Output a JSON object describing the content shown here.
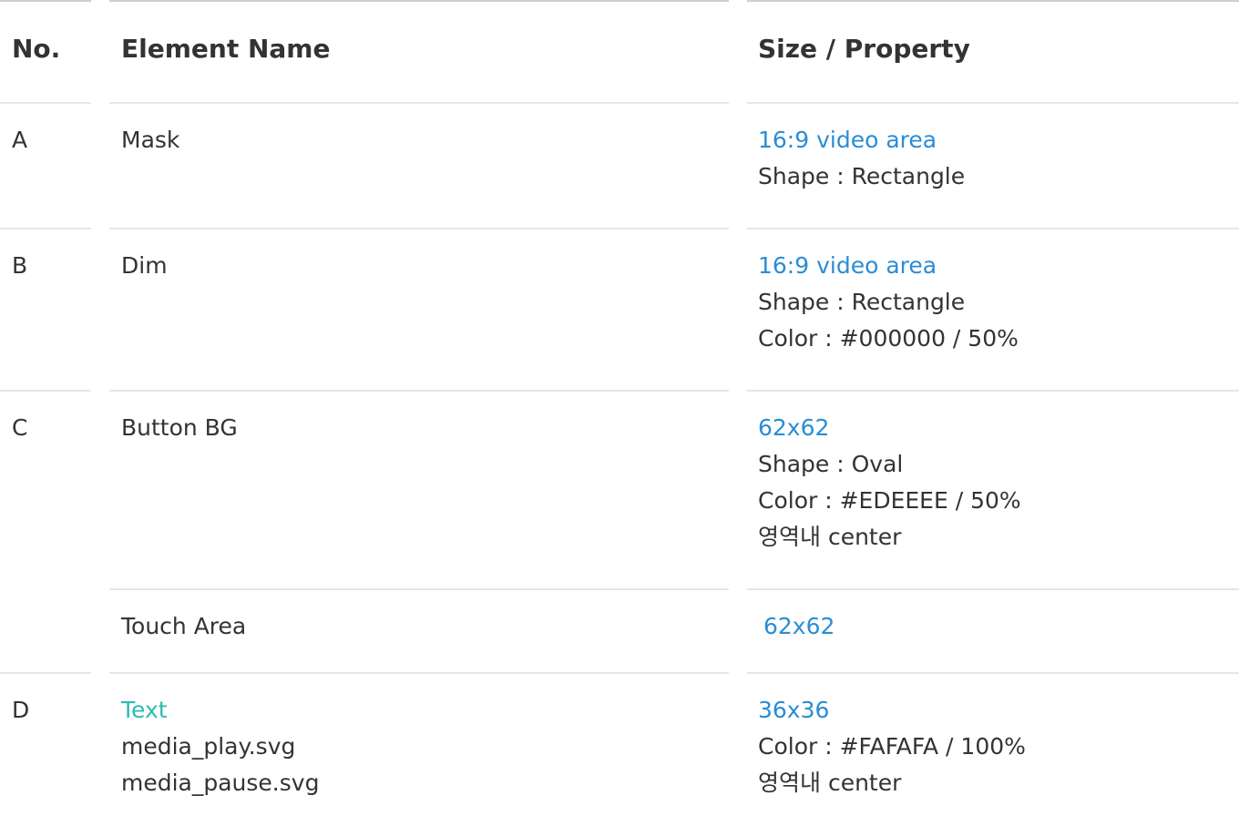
{
  "table": {
    "headers": {
      "no": "No.",
      "element": "Element Name",
      "property": "Size / Property"
    },
    "rows": [
      {
        "no": "A",
        "element": [
          "Mask"
        ],
        "size": "16:9 video area",
        "props": [
          "Shape : Rectangle"
        ]
      },
      {
        "no": "B",
        "element": [
          "Dim"
        ],
        "size": "16:9 video area",
        "props": [
          "Shape : Rectangle",
          "Color : #000000 / 50%"
        ]
      },
      {
        "no": "C",
        "element": [
          "Button BG"
        ],
        "size": "62x62",
        "props": [
          "Shape : Oval",
          "Color : #EDEEEE / 50%",
          "영역내 center"
        ]
      },
      {
        "no": "",
        "element": [
          "Touch Area"
        ],
        "size": "62x62",
        "props": []
      },
      {
        "no": "D",
        "element_link": "Text",
        "element": [
          "media_play.svg",
          "media_pause.svg"
        ],
        "size": "36x36",
        "props": [
          "Color : #FAFAFA / 100%",
          "영역내 center"
        ]
      }
    ]
  },
  "colors": {
    "size_text": "#2a8dd4",
    "link_text": "#2cbcb1",
    "body_text": "#333333",
    "divider": "#e6e6e6"
  }
}
